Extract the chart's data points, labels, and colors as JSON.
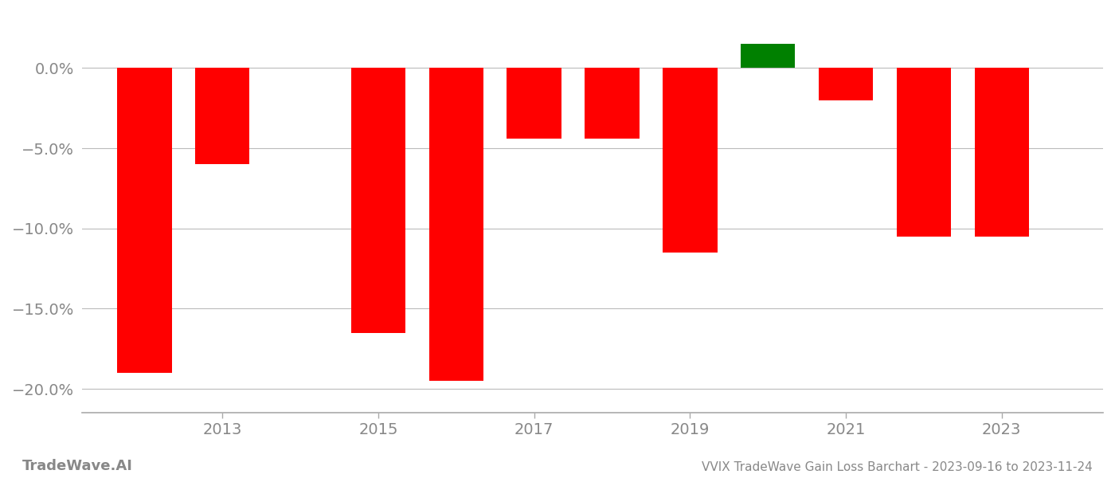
{
  "years": [
    2012,
    2013,
    2015,
    2016,
    2017,
    2018,
    2019,
    2020,
    2021,
    2022,
    2023
  ],
  "values": [
    -0.19,
    -0.06,
    -0.165,
    -0.195,
    -0.044,
    -0.044,
    -0.115,
    0.015,
    -0.02,
    -0.105,
    -0.105
  ],
  "colors": [
    "#ff0000",
    "#ff0000",
    "#ff0000",
    "#ff0000",
    "#ff0000",
    "#ff0000",
    "#ff0000",
    "#008000",
    "#ff0000",
    "#ff0000",
    "#ff0000"
  ],
  "background_color": "#ffffff",
  "grid_color": "#bbbbbb",
  "axis_color": "#aaaaaa",
  "text_color": "#888888",
  "ylim_min": -0.215,
  "ylim_max": 0.035,
  "bar_width": 0.7,
  "yticks": [
    0.0,
    -0.05,
    -0.1,
    -0.15,
    -0.2
  ],
  "ytick_labels": [
    "0.0%",
    "−5.0%",
    "−10.0%",
    "−15.0%",
    "−20.0%"
  ],
  "xtick_years": [
    2013,
    2015,
    2017,
    2019,
    2021,
    2023
  ],
  "xlim_min": 2011.2,
  "xlim_max": 2024.3,
  "footer_left": "TradeWave.AI",
  "footer_right": "VVIX TradeWave Gain Loss Barchart - 2023-09-16 to 2023-11-24"
}
